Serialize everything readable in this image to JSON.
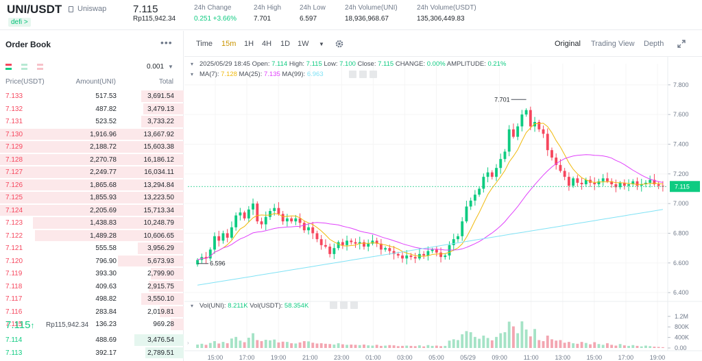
{
  "header": {
    "pair": "UNI/USDT",
    "pair_name": "Uniswap",
    "tag": "defi >",
    "price": "7.115",
    "price_sub": "Rp115,942.34",
    "stats": [
      {
        "label": "24h Change",
        "value": "0.251 +3.66%",
        "color": "#0ecb81"
      },
      {
        "label": "24h High",
        "value": "7.701",
        "color": "#1e2329"
      },
      {
        "label": "24h Low",
        "value": "6.597",
        "color": "#1e2329"
      },
      {
        "label": "24h Volume(UNI)",
        "value": "18,936,968.67",
        "color": "#1e2329"
      },
      {
        "label": "24h Volume(USDT)",
        "value": "135,306,449.83",
        "color": "#1e2329"
      }
    ]
  },
  "orderbook": {
    "title": "Order Book",
    "more": "•••",
    "precision": "0.001",
    "col_price": "Price(USDT)",
    "col_amount": "Amount(UNI)",
    "col_total": "Total",
    "asks": [
      {
        "price": "7.133",
        "amount": "517.53",
        "total": "3,691.54",
        "depth": 0.23
      },
      {
        "price": "7.132",
        "amount": "487.82",
        "total": "3,479.13",
        "depth": 0.22
      },
      {
        "price": "7.131",
        "amount": "523.52",
        "total": "3,733.22",
        "depth": 0.23
      },
      {
        "price": "7.130",
        "amount": "1,916.96",
        "total": "13,667.92",
        "depth": 1.0
      },
      {
        "price": "7.129",
        "amount": "2,188.72",
        "total": "15,603.38",
        "depth": 1.0
      },
      {
        "price": "7.128",
        "amount": "2,270.78",
        "total": "16,186.12",
        "depth": 1.0
      },
      {
        "price": "7.127",
        "amount": "2,249.77",
        "total": "16,034.11",
        "depth": 1.0
      },
      {
        "price": "7.126",
        "amount": "1,865.68",
        "total": "13,294.84",
        "depth": 1.0
      },
      {
        "price": "7.125",
        "amount": "1,855.93",
        "total": "13,223.50",
        "depth": 1.0
      },
      {
        "price": "7.124",
        "amount": "2,205.69",
        "total": "15,713.34",
        "depth": 1.0
      },
      {
        "price": "7.123",
        "amount": "1,438.83",
        "total": "10,248.79",
        "depth": 0.82
      },
      {
        "price": "7.122",
        "amount": "1,489.28",
        "total": "10,606.65",
        "depth": 0.81
      },
      {
        "price": "7.121",
        "amount": "555.58",
        "total": "3,956.29",
        "depth": 0.25
      },
      {
        "price": "7.120",
        "amount": "796.90",
        "total": "5,673.93",
        "depth": 0.36
      },
      {
        "price": "7.119",
        "amount": "393.30",
        "total": "2,799.90",
        "depth": 0.18
      },
      {
        "price": "7.118",
        "amount": "409.63",
        "total": "2,915.75",
        "depth": 0.19
      },
      {
        "price": "7.117",
        "amount": "498.82",
        "total": "3,550.10",
        "depth": 0.23
      },
      {
        "price": "7.116",
        "amount": "283.84",
        "total": "2,019.81",
        "depth": 0.13
      },
      {
        "price": "7.115",
        "amount": "136.23",
        "total": "969.28",
        "depth": 0.07
      }
    ],
    "last_price": "7.115",
    "last_arrow": "↑",
    "last_sub": "Rp115,942.34",
    "bids": [
      {
        "price": "7.114",
        "amount": "488.69",
        "total": "3,476.54",
        "depth": 0.27
      },
      {
        "price": "7.113",
        "amount": "392.17",
        "total": "2,789.51",
        "depth": 0.21
      }
    ]
  },
  "toolbar": {
    "timeframes": [
      "Time",
      "15m",
      "1H",
      "4H",
      "1D",
      "1W"
    ],
    "active": "15m",
    "views": [
      "Original",
      "Trading View",
      "Depth"
    ],
    "active_view": "Original"
  },
  "chart_data": {
    "type": "candlestick",
    "info_line": {
      "date": "2025/05/29 18:45",
      "open": "7.114",
      "high": "7.115",
      "low": "7.100",
      "close": "7.115",
      "change": "0.00%",
      "amplitude": "0.21%"
    },
    "ma_line": {
      "ma7": "7.128",
      "ma25": "7.135",
      "ma99": "6.963"
    },
    "ma_colors": {
      "ma7": "#f0b90b",
      "ma25": "#e040fb",
      "ma99": "#7fe2f5"
    },
    "vol_line": {
      "vol_uni": "8.211K",
      "vol_usdt": "58.354K"
    },
    "price_axis": [
      "7.800",
      "7.600",
      "7.400",
      "7.200",
      "7.000",
      "6.800",
      "6.600",
      "6.400"
    ],
    "price_range": [
      6.35,
      7.85
    ],
    "vol_axis": [
      "1.2M",
      "800K",
      "400K",
      "0.00"
    ],
    "vol_range": [
      0,
      1300
    ],
    "time_axis": [
      "15:00",
      "17:00",
      "19:00",
      "21:00",
      "23:00",
      "01:00",
      "03:00",
      "05:00",
      "05/29",
      "09:00",
      "11:00",
      "13:00",
      "15:00",
      "17:00",
      "19:00"
    ],
    "current_price": "7.115",
    "high_marker": "7.701",
    "low_marker": "6.596",
    "up_color": "#0ecb81",
    "down_color": "#f6465d",
    "closes": [
      6.62,
      6.64,
      6.63,
      6.69,
      6.78,
      6.75,
      6.8,
      6.77,
      6.84,
      6.92,
      6.94,
      6.9,
      6.96,
      7.0,
      6.88,
      6.86,
      6.91,
      6.95,
      6.97,
      6.93,
      6.88,
      6.9,
      6.88,
      6.9,
      6.87,
      6.82,
      6.84,
      6.8,
      6.76,
      6.72,
      6.71,
      6.66,
      6.7,
      6.74,
      6.72,
      6.75,
      6.74,
      6.73,
      6.74,
      6.71,
      6.73,
      6.75,
      6.73,
      6.69,
      6.7,
      6.68,
      6.66,
      6.65,
      6.63,
      6.65,
      6.64,
      6.63,
      6.66,
      6.65,
      6.68,
      6.69,
      6.67,
      6.64,
      6.65,
      6.72,
      6.76,
      6.78,
      6.88,
      6.98,
      7.02,
      7.06,
      7.1,
      7.18,
      7.21,
      7.18,
      7.24,
      7.3,
      7.35,
      7.5,
      7.45,
      7.52,
      7.6,
      7.63,
      7.52,
      7.55,
      7.5,
      7.47,
      7.36,
      7.31,
      7.26,
      7.22,
      7.18,
      7.12,
      7.17,
      7.14,
      7.13,
      7.16,
      7.14,
      7.13,
      7.15,
      7.17,
      7.15,
      7.13,
      7.11,
      7.14,
      7.12,
      7.13,
      7.15,
      7.12,
      7.13,
      7.14,
      7.16,
      7.13,
      7.12,
      7.115
    ],
    "volumes": [
      130,
      160,
      120,
      190,
      260,
      170,
      230,
      180,
      360,
      420,
      280,
      220,
      390,
      560,
      300,
      260,
      310,
      290,
      320,
      210,
      240,
      230,
      180,
      170,
      210,
      260,
      250,
      200,
      170,
      180,
      160,
      150,
      130,
      180,
      140,
      120,
      130,
      120,
      110,
      130,
      100,
      90,
      120,
      80,
      90,
      110,
      100,
      70,
      80,
      90,
      80,
      70,
      100,
      60,
      110,
      80,
      90,
      70,
      80,
      280,
      330,
      300,
      520,
      640,
      600,
      420,
      350,
      470,
      380,
      290,
      420,
      560,
      600,
      1000,
      820,
      560,
      1010,
      700,
      440,
      720,
      300,
      260,
      470,
      330,
      280,
      300,
      200,
      230,
      180,
      160,
      230,
      190,
      140,
      220,
      150,
      120,
      180,
      120,
      90,
      150,
      100,
      80,
      110,
      80,
      60,
      90,
      70,
      50,
      40,
      30
    ]
  }
}
